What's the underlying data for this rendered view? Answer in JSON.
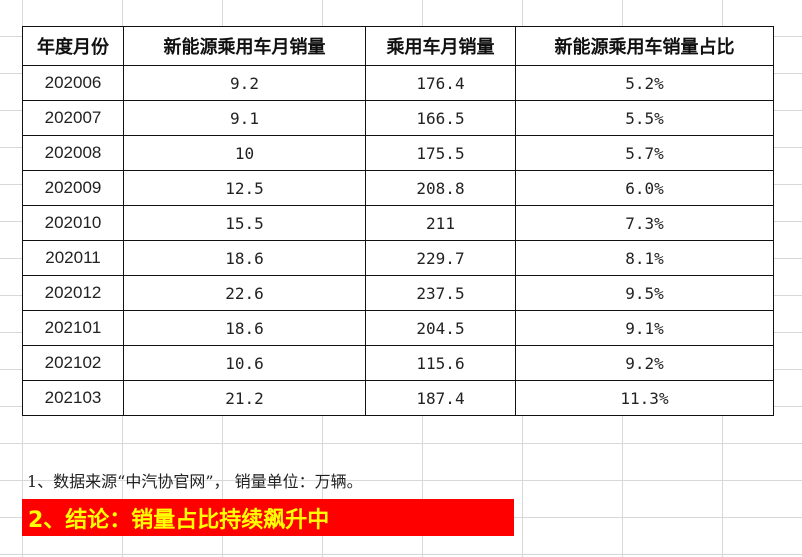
{
  "table": {
    "headers": [
      "年度月份",
      "新能源乘用车月销量",
      "乘用车月销量",
      "新能源乘用车销量占比"
    ],
    "rows": [
      [
        "202006",
        "9.2",
        "176.4",
        "5.2%"
      ],
      [
        "202007",
        "9.1",
        "166.5",
        "5.5%"
      ],
      [
        "202008",
        "10",
        "175.5",
        "5.7%"
      ],
      [
        "202009",
        "12.5",
        "208.8",
        "6.0%"
      ],
      [
        "202010",
        "15.5",
        "211",
        "7.3%"
      ],
      [
        "202011",
        "18.6",
        "229.7",
        "8.1%"
      ],
      [
        "202012",
        "22.6",
        "237.5",
        "9.5%"
      ],
      [
        "202101",
        "18.6",
        "204.5",
        "9.1%"
      ],
      [
        "202102",
        "10.6",
        "115.6",
        "9.2%"
      ],
      [
        "202103",
        "21.2",
        "187.4",
        "11.3%"
      ]
    ]
  },
  "note": "1、数据来源“中汽协官网”， 销量单位：万辆。",
  "conclusion": "2、结论：销量占比持续飙升中",
  "colors": {
    "conclusion_bg": "#ff0000",
    "conclusion_text": "#ffff00"
  }
}
